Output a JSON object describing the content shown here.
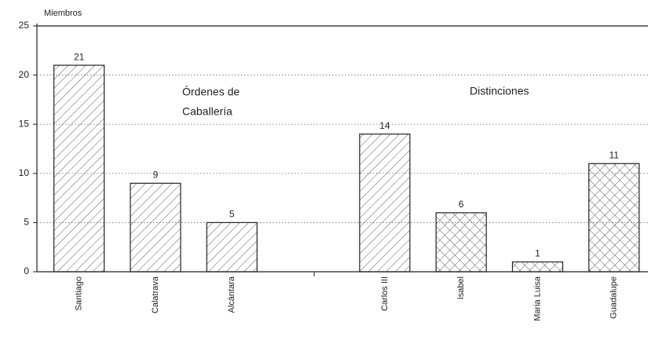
{
  "chart_data": {
    "type": "bar",
    "y_axis_label": "Miembros",
    "categories": [
      "Santiago",
      "Calatrava",
      "Alcántara",
      null,
      "Carlos III",
      "Isabel",
      "Maria Luisa",
      "Guadalupe"
    ],
    "values": [
      21,
      9,
      5,
      null,
      14,
      6,
      1,
      11
    ],
    "hatches": [
      "diagonal",
      "diagonal",
      "diagonal",
      null,
      "diagonal",
      "cross",
      "cross",
      "cross"
    ],
    "color": "#222222",
    "ylim": [
      0,
      25
    ],
    "yticks": [
      0,
      5,
      10,
      15,
      20,
      25
    ],
    "grid": true,
    "annotations": [
      "Órdenes de",
      "Caballería",
      "Distinciones"
    ]
  }
}
